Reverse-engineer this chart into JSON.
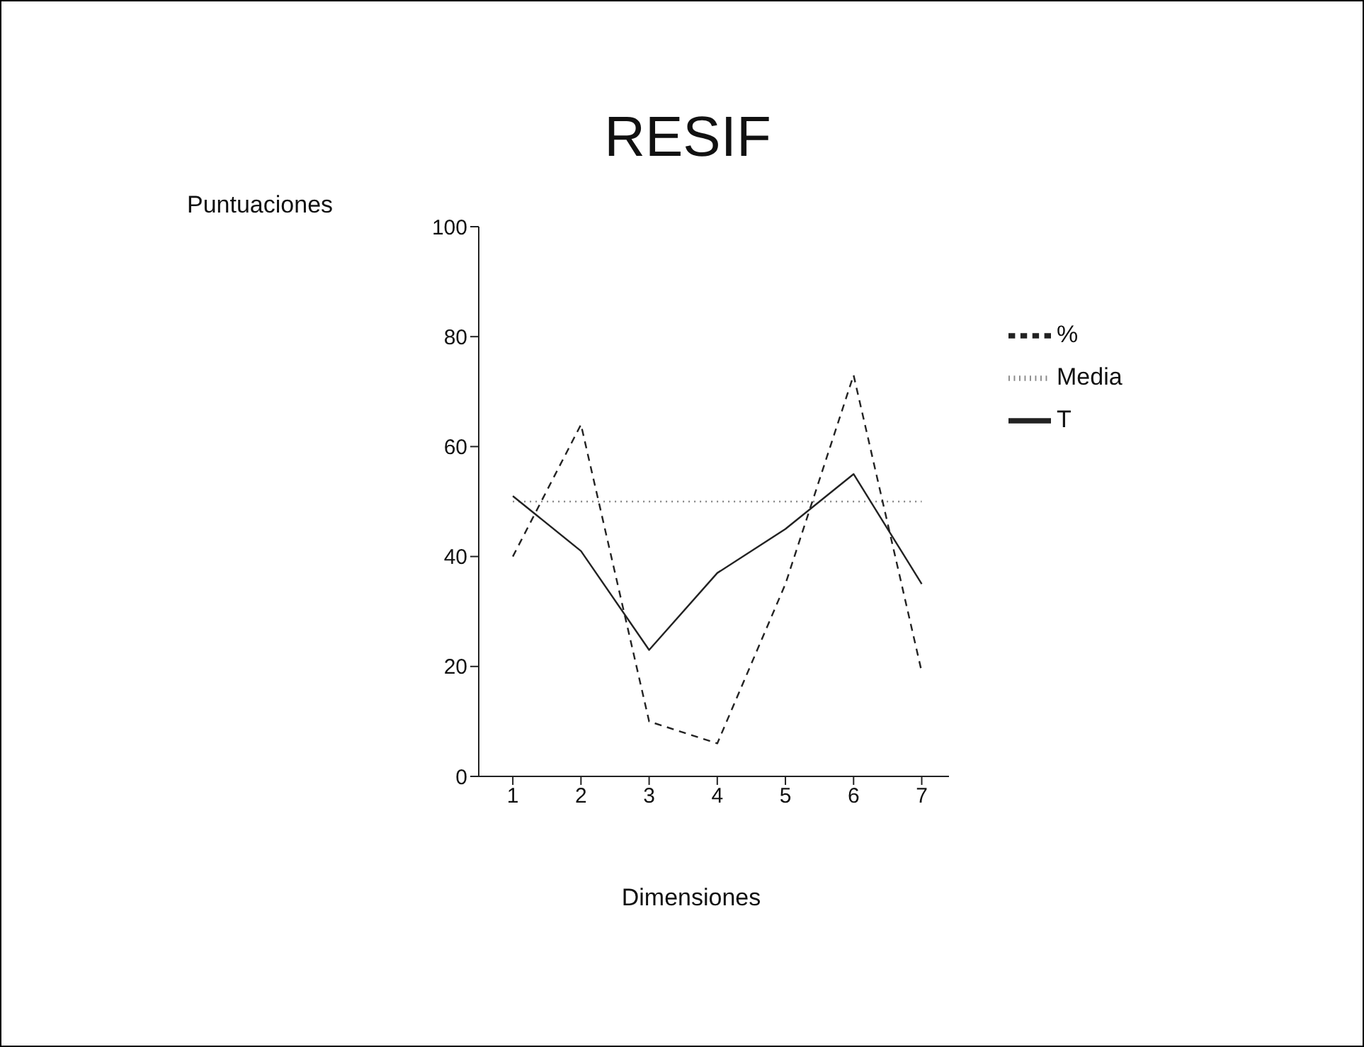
{
  "chart_data": {
    "type": "line",
    "title": "RESIF",
    "xlabel": "Dimensiones",
    "ylabel": "Puntuaciones",
    "x": [
      1,
      2,
      3,
      4,
      5,
      6,
      7
    ],
    "series": [
      {
        "name": "Media",
        "color": "#888888",
        "line_style": "dotted",
        "values": [
          50,
          50,
          50,
          50,
          50,
          50,
          50
        ]
      },
      {
        "name": "%",
        "color": "#222222",
        "line_style": "dashed",
        "values": [
          40,
          64,
          10,
          6,
          35,
          73,
          19
        ]
      },
      {
        "name": "T",
        "color": "#222222",
        "line_style": "solid",
        "values": [
          51,
          41,
          23,
          37,
          45,
          55,
          35
        ]
      }
    ],
    "xlim": [
      0.5,
      7.4
    ],
    "xticks": [
      1,
      2,
      3,
      4,
      5,
      6,
      7
    ],
    "ylim": [
      0,
      100
    ],
    "yticks": [
      0,
      20,
      40,
      60,
      80,
      100
    ],
    "grid": false,
    "legend": "right",
    "marker": "none"
  }
}
